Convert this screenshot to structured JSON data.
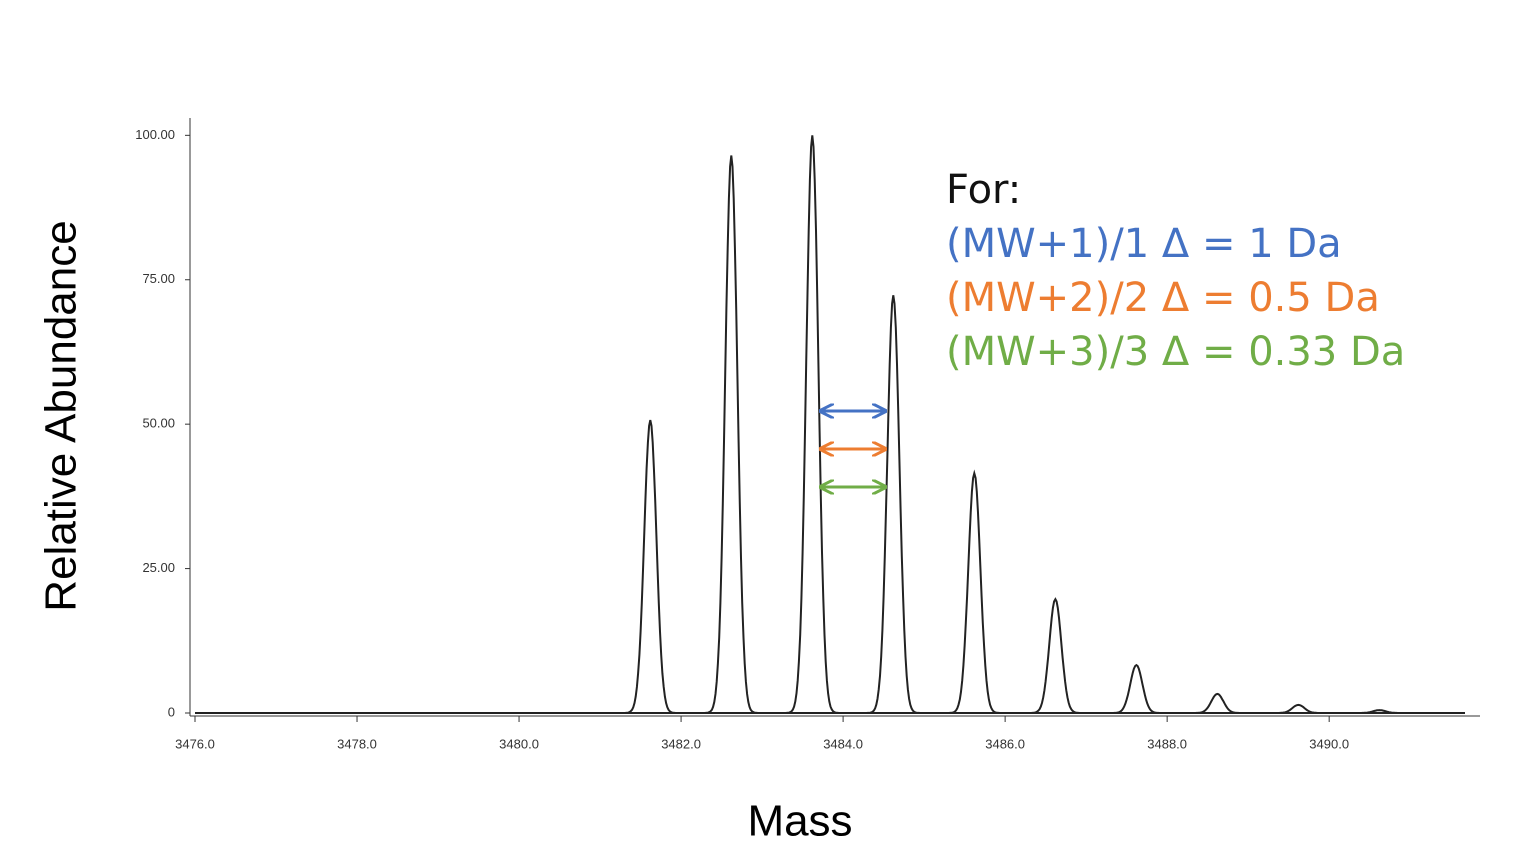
{
  "chart_data": {
    "type": "profile",
    "x_label": "Mass",
    "y_label": "Relative Abundance",
    "x": [
      3481.62,
      3482.62,
      3483.62,
      3484.62,
      3485.62,
      3486.62,
      3487.62,
      3488.62,
      3489.62,
      3490.62
    ],
    "values": [
      50.7,
      96.5,
      100,
      72.3,
      41.5,
      19.7,
      8.3,
      3.3,
      1.4,
      0.5
    ],
    "color": "#222222",
    "xlim": [
      3476,
      3491.8
    ],
    "ylim": [
      0,
      103
    ],
    "xticks": [
      {
        "value": 3476,
        "label": "3476.0"
      },
      {
        "value": 3478,
        "label": "3478.0"
      },
      {
        "value": 3480,
        "label": "3480.0"
      },
      {
        "value": 3482,
        "label": "3482.0"
      },
      {
        "value": 3484,
        "label": "3484.0"
      },
      {
        "value": 3486,
        "label": "3486.0"
      },
      {
        "value": 3488,
        "label": "3488.0"
      },
      {
        "value": 3490,
        "label": "3490.0"
      }
    ],
    "yticks": [
      0,
      {
        "value": 25,
        "label": "25.00"
      },
      {
        "value": 50,
        "label": "50.00"
      },
      {
        "value": 75,
        "label": "75.00"
      },
      {
        "value": 100,
        "label": "100.00"
      }
    ],
    "annotations": [
      {
        "text": "For:",
        "color": "#111111"
      },
      {
        "text": "(MW+1)/1 Δ = 1 Da",
        "color": "#4472c4"
      },
      {
        "text": "(MW+2)/2 Δ = 0.5 Da",
        "color": "#ed7d31"
      },
      {
        "text": "(MW+3)/3 Δ = 0.33 Da",
        "color": "#70ad47"
      }
    ]
  }
}
